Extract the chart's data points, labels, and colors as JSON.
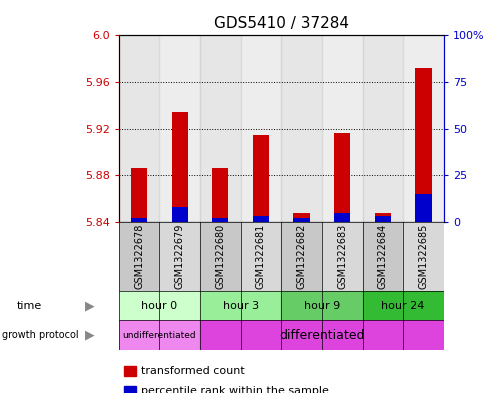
{
  "title": "GDS5410 / 37284",
  "samples": [
    "GSM1322678",
    "GSM1322679",
    "GSM1322680",
    "GSM1322681",
    "GSM1322682",
    "GSM1322683",
    "GSM1322684",
    "GSM1322685"
  ],
  "transformed_count": [
    5.886,
    5.934,
    5.886,
    5.915,
    5.848,
    5.916,
    5.848,
    5.972
  ],
  "percentile_rank": [
    2,
    8,
    2,
    3,
    2,
    5,
    3,
    15
  ],
  "ylim_left": [
    5.84,
    6.0
  ],
  "yticks_left": [
    5.84,
    5.88,
    5.92,
    5.96,
    6.0
  ],
  "ylim_right": [
    0,
    100
  ],
  "yticks_right": [
    0,
    25,
    50,
    75,
    100
  ],
  "ytick_labels_right": [
    "0",
    "25",
    "50",
    "75",
    "100%"
  ],
  "bar_color_red": "#cc0000",
  "bar_color_blue": "#0000cc",
  "bar_bottom": 5.84,
  "time_colors": [
    "#ccffcc",
    "#99ee99",
    "#66cc66",
    "#33bb33"
  ],
  "time_labels": [
    "hour 0",
    "hour 3",
    "hour 9",
    "hour 24"
  ],
  "time_sample_ranges": [
    [
      0,
      1
    ],
    [
      2,
      3
    ],
    [
      4,
      5
    ],
    [
      6,
      7
    ]
  ],
  "undiff_color": "#ee88ee",
  "diff_color": "#dd44dd",
  "undiff_label": "undifferentiated",
  "diff_label": "differentiated",
  "undiff_range": [
    0,
    1
  ],
  "diff_range": [
    2,
    7
  ],
  "legend_items": [
    {
      "label": "transformed count",
      "color": "#cc0000"
    },
    {
      "label": "percentile rank within the sample",
      "color": "#0000cc"
    }
  ],
  "bg_color": "#ffffff",
  "left_axis_color": "#cc0000",
  "right_axis_color": "#0000cc",
  "sample_bg_even": "#c8c8c8",
  "sample_bg_odd": "#d8d8d8",
  "bar_width": 0.4
}
